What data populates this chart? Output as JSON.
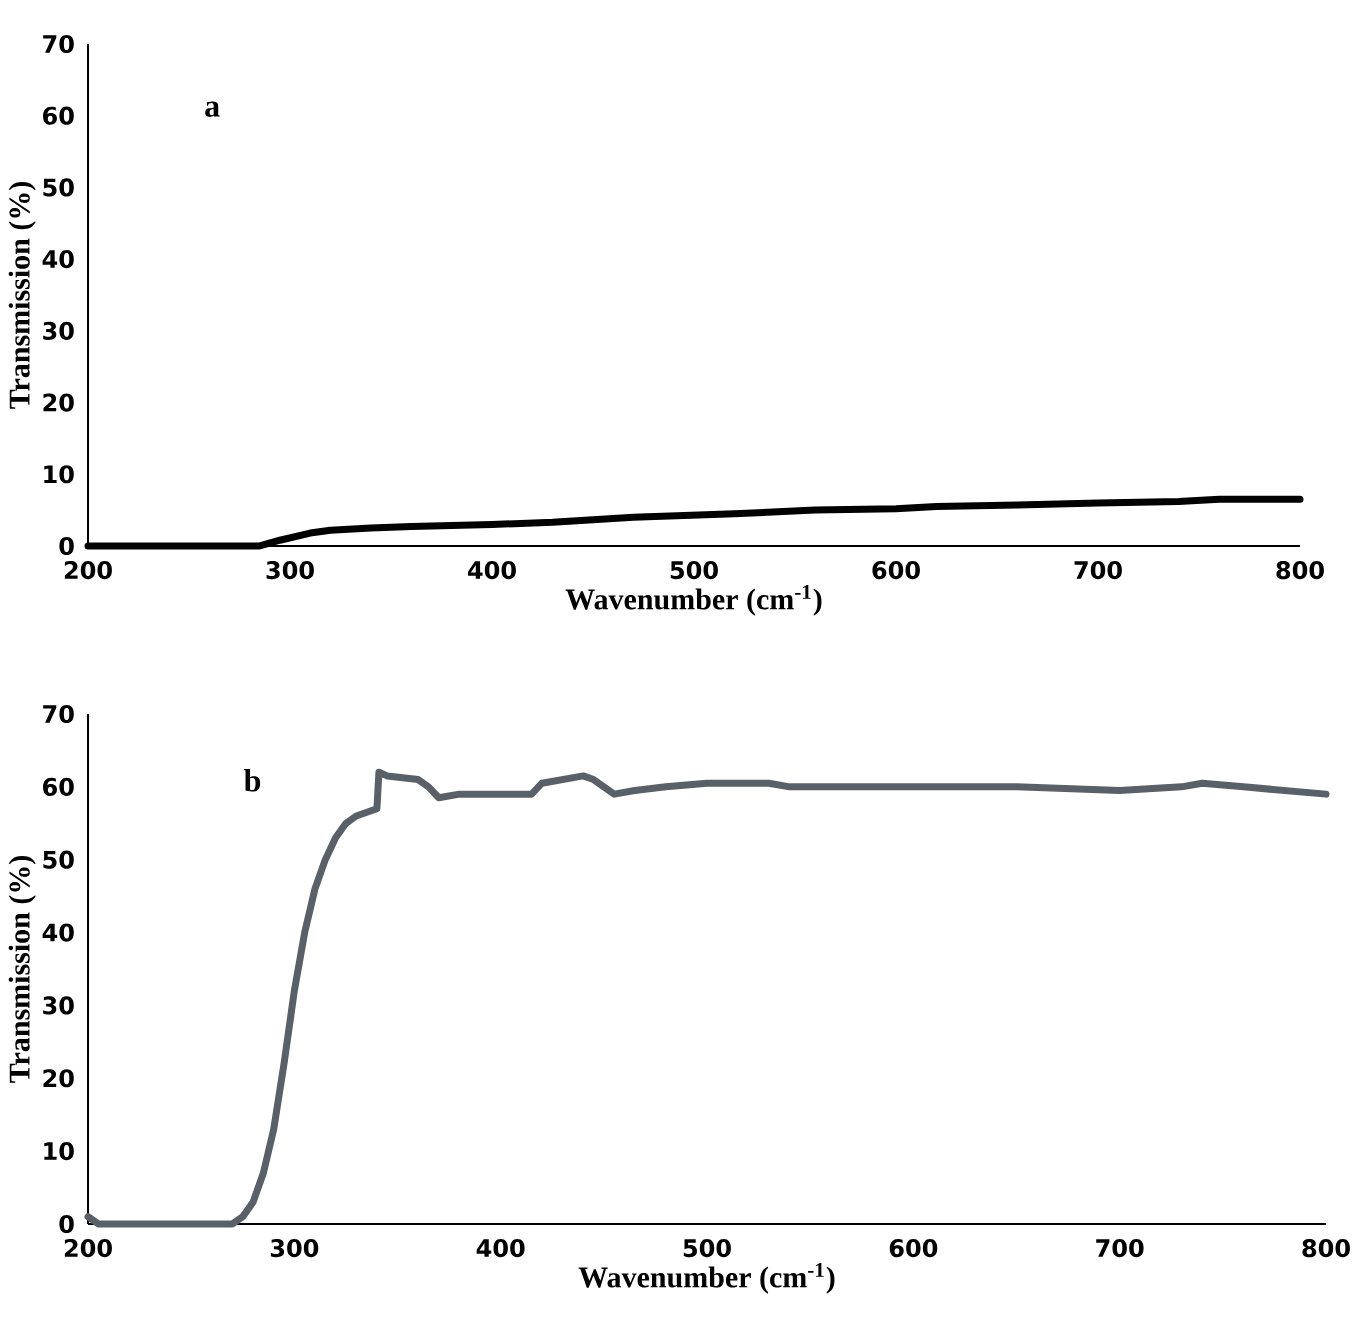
{
  "chart_data": [
    {
      "type": "line",
      "xlabel": "Wavenumber (cm$^{-1}$)",
      "ylabel": "Transmission (%)",
      "annotations": [
        "a"
      ],
      "xlim": [
        200,
        800
      ],
      "ylim": [
        0,
        70
      ],
      "xticks": [
        200,
        300,
        400,
        500,
        600,
        700,
        800
      ],
      "yticks": [
        0,
        10,
        20,
        30,
        40,
        50,
        60,
        70
      ],
      "series": [
        {
          "color": "#000000",
          "x": [
            200,
            250,
            285,
            295,
            310,
            320,
            340,
            360,
            400,
            430,
            470,
            520,
            560,
            600,
            620,
            660,
            700,
            740,
            760,
            800
          ],
          "values": [
            0,
            0,
            0,
            0.8,
            1.8,
            2.2,
            2.5,
            2.7,
            3,
            3.3,
            4,
            4.5,
            5,
            5.2,
            5.5,
            5.7,
            6,
            6.2,
            6.5,
            6.5
          ]
        }
      ]
    },
    {
      "type": "line",
      "xlabel": "Wavenumber (cm$^{-1}$)",
      "ylabel": "Transmission (%)",
      "annotations": [
        "b"
      ],
      "xlim": [
        200,
        800
      ],
      "ylim": [
        0,
        70
      ],
      "xticks": [
        200,
        300,
        400,
        500,
        600,
        700,
        800
      ],
      "yticks": [
        0,
        10,
        20,
        30,
        40,
        50,
        60,
        70
      ],
      "series": [
        {
          "color": "#5a6068",
          "x": [
            200,
            205,
            240,
            270,
            275,
            280,
            285,
            290,
            295,
            300,
            305,
            310,
            315,
            320,
            325,
            330,
            340,
            341,
            345,
            360,
            365,
            370,
            380,
            400,
            415,
            420,
            440,
            445,
            455,
            465,
            480,
            500,
            530,
            540,
            600,
            650,
            700,
            730,
            740,
            760,
            800
          ],
          "values": [
            1,
            0,
            0,
            0,
            1,
            3,
            7,
            13,
            22,
            32,
            40,
            46,
            50,
            53,
            55,
            56,
            57,
            62,
            61.5,
            61,
            60,
            58.5,
            59,
            59,
            59,
            60.5,
            61.5,
            61,
            59,
            59.5,
            60,
            60.5,
            60.5,
            60,
            60,
            60,
            59.5,
            60,
            60.5,
            60,
            59
          ]
        }
      ]
    }
  ]
}
